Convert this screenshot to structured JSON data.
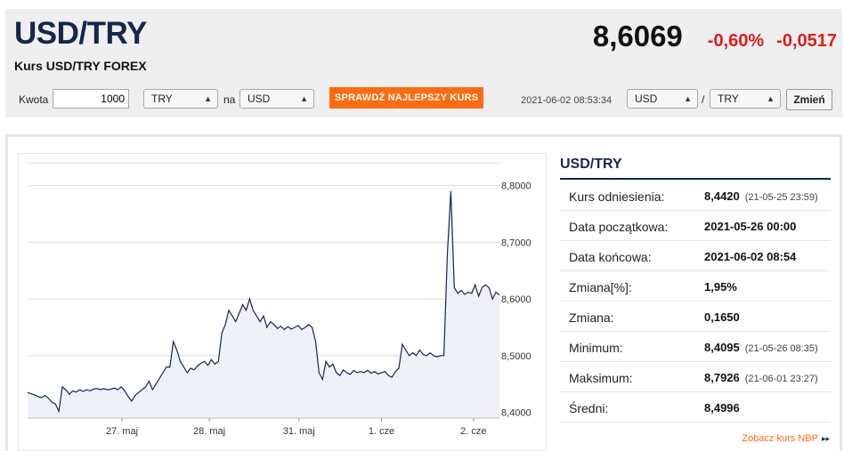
{
  "header": {
    "pair": "USD/TRY",
    "subtitle": "Kurs USD/TRY FOREX",
    "price": "8,6069",
    "change_pct": "-0,60%",
    "change_abs": "-0,0517"
  },
  "converter": {
    "kwota_label": "Kwota",
    "kwota_value": "1000",
    "from_currency": "TRY",
    "na_label": "na",
    "to_currency": "USD",
    "cta_label": "SPRAWDŹ NAJLEPSZY KURS",
    "timestamp": "2021-06-02 08:53:34",
    "pair_base": "USD",
    "slash": "/",
    "pair_quote": "TRY",
    "change_button": "Zmień"
  },
  "stats": {
    "title": "USD/TRY",
    "rows": [
      {
        "label": "Kurs odniesienia:",
        "value": "8,4420",
        "date": "(21-05-25 23:59)"
      },
      {
        "label": "Data początkowa:",
        "value": "2021-05-26 00:00",
        "date": ""
      },
      {
        "label": "Data końcowa:",
        "value": "2021-06-02 08:54",
        "date": ""
      },
      {
        "label": "Zmiana[%]:",
        "value": "1,95%",
        "date": ""
      },
      {
        "label": "Zmiana:",
        "value": "0,1650",
        "date": ""
      },
      {
        "label": "Minimum:",
        "value": "8,4095",
        "date": "(21-05-26 08:35)"
      },
      {
        "label": "Maksimum:",
        "value": "8,7926",
        "date": "(21-06-01 23:27)"
      },
      {
        "label": "Średni:",
        "value": "8,4996",
        "date": ""
      }
    ],
    "nbp_link": "Zobacz kurs NBP",
    "nbp_arrow": "▸▸"
  },
  "chart_data": {
    "type": "area",
    "x_ticks": [
      "27. maj",
      "28. maj",
      "31. maj",
      "1. cze",
      "2. cze"
    ],
    "y_ticks": [
      "8,4000",
      "8,5000",
      "8,6000",
      "8,7000",
      "8,8000"
    ],
    "y_tick_values": [
      8.4,
      8.5,
      8.6,
      8.7,
      8.8
    ],
    "ylim": [
      8.39,
      8.84
    ],
    "grid": true,
    "line_color": "#17264e",
    "fill_color": "#eef1f7",
    "series": [
      {
        "values": [
          8.435,
          8.433,
          8.431,
          8.428,
          8.426,
          8.43,
          8.425,
          8.418,
          8.415,
          8.402,
          8.445,
          8.44,
          8.432,
          8.438,
          8.436,
          8.44,
          8.437,
          8.44,
          8.438,
          8.441,
          8.442,
          8.44,
          8.442,
          8.44,
          8.441,
          8.443,
          8.44,
          8.445,
          8.438,
          8.428,
          8.42,
          8.43,
          8.435,
          8.44,
          8.445,
          8.455,
          8.44,
          8.45,
          8.46,
          8.47,
          8.48,
          8.48,
          8.525,
          8.51,
          8.49,
          8.48,
          8.47,
          8.478,
          8.475,
          8.482,
          8.487,
          8.49,
          8.483,
          8.493,
          8.485,
          8.49,
          8.54,
          8.555,
          8.58,
          8.57,
          8.56,
          8.575,
          8.59,
          8.58,
          8.6,
          8.58,
          8.57,
          8.56,
          8.57,
          8.55,
          8.56,
          8.555,
          8.548,
          8.552,
          8.546,
          8.551,
          8.547,
          8.55,
          8.553,
          8.546,
          8.55,
          8.555,
          8.55,
          8.525,
          8.47,
          8.458,
          8.49,
          8.48,
          8.485,
          8.47,
          8.465,
          8.475,
          8.47,
          8.467,
          8.474,
          8.47,
          8.472,
          8.47,
          8.474,
          8.469,
          8.472,
          8.468,
          8.47,
          8.472,
          8.465,
          8.462,
          8.472,
          8.478,
          8.52,
          8.51,
          8.5,
          8.505,
          8.5,
          8.51,
          8.502,
          8.5,
          8.505,
          8.5,
          8.498,
          8.5,
          8.5,
          8.68,
          8.79,
          8.62,
          8.61,
          8.615,
          8.608,
          8.612,
          8.61,
          8.625,
          8.605,
          8.62,
          8.625,
          8.62,
          8.6,
          8.612,
          8.607
        ]
      }
    ]
  }
}
